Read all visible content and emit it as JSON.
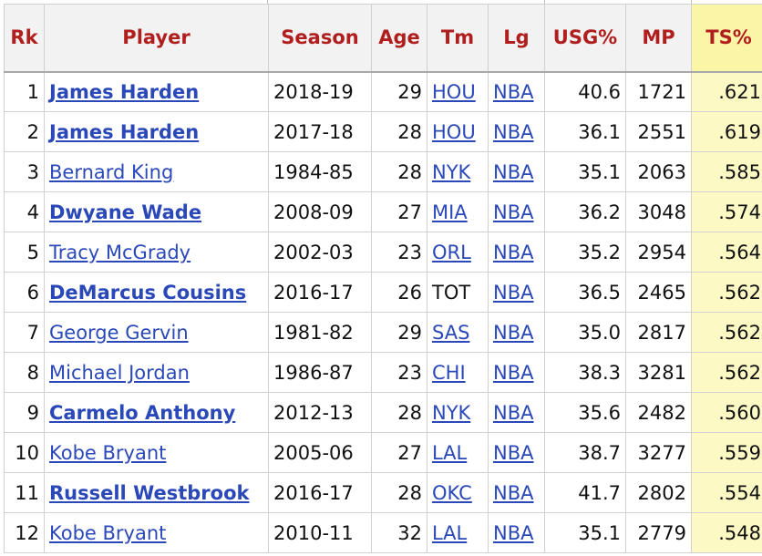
{
  "table": {
    "columns": [
      "Rk",
      "Player",
      "Season",
      "Age",
      "Tm",
      "Lg",
      "USG%",
      "MP",
      "TS%"
    ],
    "rows": [
      {
        "rk": "1",
        "player": "James Harden",
        "player_bold": true,
        "season": "2018-19",
        "age": "29",
        "tm": "HOU",
        "tm_link": true,
        "lg": "NBA",
        "usg": "40.6",
        "mp": "1721",
        "ts": ".621"
      },
      {
        "rk": "2",
        "player": "James Harden",
        "player_bold": true,
        "season": "2017-18",
        "age": "28",
        "tm": "HOU",
        "tm_link": true,
        "lg": "NBA",
        "usg": "36.1",
        "mp": "2551",
        "ts": ".619"
      },
      {
        "rk": "3",
        "player": "Bernard King",
        "player_bold": false,
        "season": "1984-85",
        "age": "28",
        "tm": "NYK",
        "tm_link": true,
        "lg": "NBA",
        "usg": "35.1",
        "mp": "2063",
        "ts": ".585"
      },
      {
        "rk": "4",
        "player": "Dwyane Wade",
        "player_bold": true,
        "season": "2008-09",
        "age": "27",
        "tm": "MIA",
        "tm_link": true,
        "lg": "NBA",
        "usg": "36.2",
        "mp": "3048",
        "ts": ".574"
      },
      {
        "rk": "5",
        "player": "Tracy McGrady",
        "player_bold": false,
        "season": "2002-03",
        "age": "23",
        "tm": "ORL",
        "tm_link": true,
        "lg": "NBA",
        "usg": "35.2",
        "mp": "2954",
        "ts": ".564"
      },
      {
        "rk": "6",
        "player": "DeMarcus Cousins",
        "player_bold": true,
        "season": "2016-17",
        "age": "26",
        "tm": "TOT",
        "tm_link": false,
        "lg": "NBA",
        "usg": "36.5",
        "mp": "2465",
        "ts": ".562"
      },
      {
        "rk": "7",
        "player": "George Gervin",
        "player_bold": false,
        "season": "1981-82",
        "age": "29",
        "tm": "SAS",
        "tm_link": true,
        "lg": "NBA",
        "usg": "35.0",
        "mp": "2817",
        "ts": ".562"
      },
      {
        "rk": "8",
        "player": "Michael Jordan",
        "player_bold": false,
        "season": "1986-87",
        "age": "23",
        "tm": "CHI",
        "tm_link": true,
        "lg": "NBA",
        "usg": "38.3",
        "mp": "3281",
        "ts": ".562"
      },
      {
        "rk": "9",
        "player": "Carmelo Anthony",
        "player_bold": true,
        "season": "2012-13",
        "age": "28",
        "tm": "NYK",
        "tm_link": true,
        "lg": "NBA",
        "usg": "35.6",
        "mp": "2482",
        "ts": ".560"
      },
      {
        "rk": "10",
        "player": "Kobe Bryant",
        "player_bold": false,
        "season": "2005-06",
        "age": "27",
        "tm": "LAL",
        "tm_link": true,
        "lg": "NBA",
        "usg": "38.7",
        "mp": "3277",
        "ts": ".559"
      },
      {
        "rk": "11",
        "player": "Russell Westbrook",
        "player_bold": true,
        "season": "2016-17",
        "age": "28",
        "tm": "OKC",
        "tm_link": true,
        "lg": "NBA",
        "usg": "41.7",
        "mp": "2802",
        "ts": ".554"
      },
      {
        "rk": "12",
        "player": "Kobe Bryant",
        "player_bold": false,
        "season": "2010-11",
        "age": "32",
        "tm": "LAL",
        "tm_link": true,
        "lg": "NBA",
        "usg": "35.1",
        "mp": "2779",
        "ts": ".548"
      }
    ]
  },
  "colors": {
    "header_text": "#b01e1e",
    "link": "#2a48b8",
    "sorted_column": "#fcf9c4"
  }
}
